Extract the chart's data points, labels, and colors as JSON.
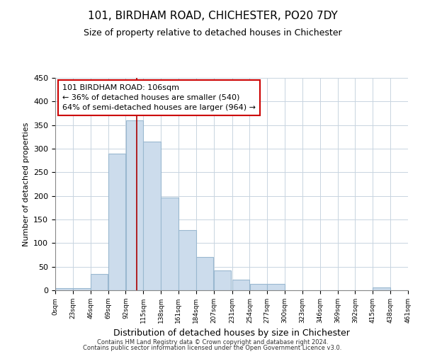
{
  "title": "101, BIRDHAM ROAD, CHICHESTER, PO20 7DY",
  "subtitle": "Size of property relative to detached houses in Chichester",
  "xlabel": "Distribution of detached houses by size in Chichester",
  "ylabel": "Number of detached properties",
  "bin_edges": [
    0,
    23,
    46,
    69,
    92,
    115,
    138,
    161,
    184,
    207,
    231,
    254,
    277,
    300,
    323,
    346,
    369,
    392,
    415,
    438,
    461
  ],
  "bar_heights": [
    5,
    5,
    35,
    290,
    360,
    315,
    197,
    127,
    70,
    42,
    22,
    13,
    13,
    0,
    0,
    0,
    0,
    0,
    6,
    0
  ],
  "bar_color": "#ccdcec",
  "bar_edge_color": "#9ab8d0",
  "x_labels": [
    "0sqm",
    "23sqm",
    "46sqm",
    "69sqm",
    "92sqm",
    "115sqm",
    "138sqm",
    "161sqm",
    "184sqm",
    "207sqm",
    "231sqm",
    "254sqm",
    "277sqm",
    "300sqm",
    "323sqm",
    "346sqm",
    "369sqm",
    "392sqm",
    "415sqm",
    "438sqm",
    "461sqm"
  ],
  "property_line_x": 106,
  "property_line_color": "#aa0000",
  "annotation_title": "101 BIRDHAM ROAD: 106sqm",
  "annotation_line1": "← 36% of detached houses are smaller (540)",
  "annotation_line2": "64% of semi-detached houses are larger (964) →",
  "annotation_box_color": "#ffffff",
  "annotation_box_edge_color": "#cc0000",
  "ylim": [
    0,
    450
  ],
  "footer1": "Contains HM Land Registry data © Crown copyright and database right 2024.",
  "footer2": "Contains public sector information licensed under the Open Government Licence v3.0.",
  "bg_color": "#ffffff",
  "grid_color": "#c8d4e0"
}
